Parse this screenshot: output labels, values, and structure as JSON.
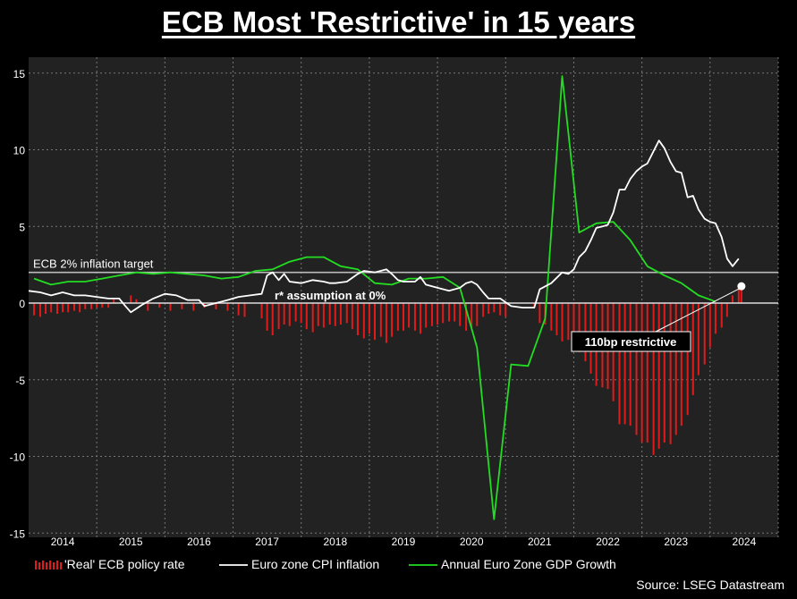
{
  "title": "ECB Most 'Restrictive' in 15 years",
  "source": "Source: LSEG Datastream",
  "colors": {
    "real_rate": "#e31a1a",
    "cpi": "#ffffff",
    "gdp": "#22dd22",
    "plot_bg": "#222222",
    "grid": "#777777"
  },
  "chart_data": {
    "type": "line",
    "xlim": [
      2013.5,
      2024.5
    ],
    "ylim": [
      -15,
      16
    ],
    "grid": true,
    "legend_position": "bottom",
    "x_ticks": [
      "2014",
      "2015",
      "2016",
      "2017",
      "2018",
      "2019",
      "2020",
      "2021",
      "2022",
      "2023",
      "2024"
    ],
    "y_ticks": [
      15,
      10,
      5,
      0,
      -5,
      -10,
      -15
    ],
    "reference_lines": [
      {
        "y": 2,
        "label": "ECB 2% inflation target"
      },
      {
        "y": 0,
        "label": "r* assumption at 0%"
      }
    ],
    "annotation": {
      "label": "110bp restrictive",
      "point": [
        2023.96,
        1.1
      ]
    },
    "series": [
      {
        "name": "'Real' ECB policy rate",
        "type": "bar",
        "points": [
          [
            2013.58,
            -0.8
          ],
          [
            2013.67,
            -0.9
          ],
          [
            2013.75,
            -0.7
          ],
          [
            2013.83,
            -0.6
          ],
          [
            2013.92,
            -0.7
          ],
          [
            2014.0,
            -0.6
          ],
          [
            2014.08,
            -0.6
          ],
          [
            2014.17,
            -0.5
          ],
          [
            2014.25,
            -0.6
          ],
          [
            2014.33,
            -0.4
          ],
          [
            2014.42,
            -0.4
          ],
          [
            2014.5,
            -0.3
          ],
          [
            2014.58,
            -0.3
          ],
          [
            2014.67,
            -0.3
          ],
          [
            2014.75,
            0.35
          ],
          [
            2015.0,
            0.5
          ],
          [
            2015.08,
            0.25
          ],
          [
            2015.25,
            -0.5
          ],
          [
            2015.42,
            -0.3
          ],
          [
            2015.58,
            -0.5
          ],
          [
            2015.75,
            -0.4
          ],
          [
            2015.92,
            -0.5
          ],
          [
            2016.08,
            -0.3
          ],
          [
            2016.25,
            -0.4
          ],
          [
            2016.42,
            -0.5
          ],
          [
            2016.58,
            -0.8
          ],
          [
            2016.67,
            -0.9
          ],
          [
            2016.92,
            -1.0
          ],
          [
            2017.0,
            -1.8
          ],
          [
            2017.08,
            -2.1
          ],
          [
            2017.17,
            -1.7
          ],
          [
            2017.25,
            -1.4
          ],
          [
            2017.33,
            -1.5
          ],
          [
            2017.42,
            -1.2
          ],
          [
            2017.5,
            -1.3
          ],
          [
            2017.58,
            -1.7
          ],
          [
            2017.67,
            -1.9
          ],
          [
            2017.75,
            -1.5
          ],
          [
            2017.83,
            -1.6
          ],
          [
            2017.92,
            -1.4
          ],
          [
            2018.0,
            -1.5
          ],
          [
            2018.08,
            -1.4
          ],
          [
            2018.17,
            -1.3
          ],
          [
            2018.25,
            -1.7
          ],
          [
            2018.33,
            -2.1
          ],
          [
            2018.42,
            -2.3
          ],
          [
            2018.5,
            -2.0
          ],
          [
            2018.58,
            -2.4
          ],
          [
            2018.67,
            -2.2
          ],
          [
            2018.75,
            -2.6
          ],
          [
            2018.83,
            -2.2
          ],
          [
            2018.92,
            -1.8
          ],
          [
            2019.0,
            -1.8
          ],
          [
            2019.08,
            -1.6
          ],
          [
            2019.17,
            -1.8
          ],
          [
            2019.25,
            -2.0
          ],
          [
            2019.33,
            -1.6
          ],
          [
            2019.42,
            -1.5
          ],
          [
            2019.5,
            -1.4
          ],
          [
            2019.58,
            -1.3
          ],
          [
            2019.67,
            -1.2
          ],
          [
            2019.75,
            -1.2
          ],
          [
            2019.83,
            -1.5
          ],
          [
            2019.92,
            -1.8
          ],
          [
            2020.0,
            -1.6
          ],
          [
            2020.08,
            -1.5
          ],
          [
            2020.17,
            -0.9
          ],
          [
            2020.25,
            -0.7
          ],
          [
            2020.33,
            -0.6
          ],
          [
            2020.42,
            -0.8
          ],
          [
            2020.5,
            -0.9
          ],
          [
            2020.92,
            -0.3
          ],
          [
            2021.0,
            -1.3
          ],
          [
            2021.08,
            -1.4
          ],
          [
            2021.17,
            -1.8
          ],
          [
            2021.25,
            -2.1
          ],
          [
            2021.33,
            -2.5
          ],
          [
            2021.42,
            -2.4
          ],
          [
            2021.5,
            -2.7
          ],
          [
            2021.58,
            -3.2
          ],
          [
            2021.67,
            -3.8
          ],
          [
            2021.75,
            -4.6
          ],
          [
            2021.83,
            -5.4
          ],
          [
            2021.92,
            -5.5
          ],
          [
            2022.0,
            -5.6
          ],
          [
            2022.08,
            -6.4
          ],
          [
            2022.17,
            -7.9
          ],
          [
            2022.25,
            -7.9
          ],
          [
            2022.33,
            -8.0
          ],
          [
            2022.42,
            -8.6
          ],
          [
            2022.5,
            -9.1
          ],
          [
            2022.58,
            -9.1
          ],
          [
            2022.67,
            -9.9
          ],
          [
            2022.75,
            -9.5
          ],
          [
            2022.83,
            -9.1
          ],
          [
            2022.92,
            -9.2
          ],
          [
            2023.0,
            -8.6
          ],
          [
            2023.08,
            -8.0
          ],
          [
            2023.17,
            -7.3
          ],
          [
            2023.25,
            -6.0
          ],
          [
            2023.33,
            -4.7
          ],
          [
            2023.42,
            -4.0
          ],
          [
            2023.5,
            -2.9
          ],
          [
            2023.58,
            -2.0
          ],
          [
            2023.67,
            -1.6
          ],
          [
            2023.75,
            -0.9
          ],
          [
            2023.83,
            0.5
          ],
          [
            2023.92,
            1.1
          ],
          [
            2023.96,
            0.9
          ]
        ]
      },
      {
        "name": "Euro zone CPI inflation",
        "type": "line",
        "points": [
          [
            2013.5,
            0.8
          ],
          [
            2013.67,
            0.7
          ],
          [
            2013.83,
            0.5
          ],
          [
            2014.0,
            0.7
          ],
          [
            2014.17,
            0.5
          ],
          [
            2014.33,
            0.5
          ],
          [
            2014.5,
            0.4
          ],
          [
            2014.67,
            0.3
          ],
          [
            2014.83,
            0.3
          ],
          [
            2014.92,
            -0.2
          ],
          [
            2015.0,
            -0.6
          ],
          [
            2015.17,
            -0.1
          ],
          [
            2015.33,
            0.3
          ],
          [
            2015.5,
            0.6
          ],
          [
            2015.67,
            0.5
          ],
          [
            2015.83,
            0.2
          ],
          [
            2016.0,
            0.2
          ],
          [
            2016.08,
            -0.2
          ],
          [
            2016.25,
            0.0
          ],
          [
            2016.42,
            0.2
          ],
          [
            2016.58,
            0.4
          ],
          [
            2016.75,
            0.5
          ],
          [
            2016.92,
            0.6
          ],
          [
            2017.0,
            1.8
          ],
          [
            2017.08,
            2.0
          ],
          [
            2017.17,
            1.5
          ],
          [
            2017.25,
            1.9
          ],
          [
            2017.33,
            1.4
          ],
          [
            2017.5,
            1.3
          ],
          [
            2017.67,
            1.5
          ],
          [
            2017.83,
            1.4
          ],
          [
            2017.92,
            1.3
          ],
          [
            2018.0,
            1.3
          ],
          [
            2018.17,
            1.4
          ],
          [
            2018.33,
            1.9
          ],
          [
            2018.42,
            2.1
          ],
          [
            2018.58,
            2.0
          ],
          [
            2018.75,
            2.2
          ],
          [
            2018.83,
            1.9
          ],
          [
            2018.92,
            1.5
          ],
          [
            2019.0,
            1.4
          ],
          [
            2019.17,
            1.4
          ],
          [
            2019.25,
            1.7
          ],
          [
            2019.33,
            1.2
          ],
          [
            2019.5,
            1.0
          ],
          [
            2019.67,
            0.8
          ],
          [
            2019.83,
            1.0
          ],
          [
            2019.92,
            1.3
          ],
          [
            2020.0,
            1.4
          ],
          [
            2020.08,
            1.2
          ],
          [
            2020.17,
            0.7
          ],
          [
            2020.25,
            0.3
          ],
          [
            2020.42,
            0.3
          ],
          [
            2020.58,
            -0.2
          ],
          [
            2020.75,
            -0.3
          ],
          [
            2020.92,
            -0.3
          ],
          [
            2021.0,
            0.9
          ],
          [
            2021.17,
            1.3
          ],
          [
            2021.33,
            2.0
          ],
          [
            2021.42,
            1.9
          ],
          [
            2021.5,
            2.2
          ],
          [
            2021.58,
            3.0
          ],
          [
            2021.67,
            3.4
          ],
          [
            2021.75,
            4.1
          ],
          [
            2021.83,
            4.9
          ],
          [
            2021.92,
            5.0
          ],
          [
            2022.0,
            5.1
          ],
          [
            2022.08,
            5.9
          ],
          [
            2022.17,
            7.4
          ],
          [
            2022.25,
            7.4
          ],
          [
            2022.33,
            8.1
          ],
          [
            2022.42,
            8.6
          ],
          [
            2022.5,
            8.9
          ],
          [
            2022.58,
            9.1
          ],
          [
            2022.67,
            9.9
          ],
          [
            2022.75,
            10.6
          ],
          [
            2022.83,
            10.1
          ],
          [
            2022.92,
            9.2
          ],
          [
            2023.0,
            8.6
          ],
          [
            2023.08,
            8.5
          ],
          [
            2023.17,
            6.9
          ],
          [
            2023.25,
            7.0
          ],
          [
            2023.33,
            6.1
          ],
          [
            2023.42,
            5.5
          ],
          [
            2023.5,
            5.3
          ],
          [
            2023.58,
            5.2
          ],
          [
            2023.67,
            4.3
          ],
          [
            2023.75,
            2.9
          ],
          [
            2023.83,
            2.4
          ],
          [
            2023.92,
            2.9
          ]
        ]
      },
      {
        "name": "Annual Euro Zone GDP Growth",
        "type": "line",
        "points": [
          [
            2013.58,
            1.6
          ],
          [
            2013.83,
            1.2
          ],
          [
            2014.08,
            1.4
          ],
          [
            2014.33,
            1.4
          ],
          [
            2014.58,
            1.6
          ],
          [
            2014.83,
            1.8
          ],
          [
            2015.08,
            2.0
          ],
          [
            2015.33,
            1.9
          ],
          [
            2015.58,
            2.0
          ],
          [
            2015.83,
            1.9
          ],
          [
            2016.08,
            1.8
          ],
          [
            2016.33,
            1.6
          ],
          [
            2016.58,
            1.7
          ],
          [
            2016.83,
            2.1
          ],
          [
            2017.08,
            2.2
          ],
          [
            2017.33,
            2.7
          ],
          [
            2017.58,
            3.0
          ],
          [
            2017.83,
            3.0
          ],
          [
            2018.08,
            2.4
          ],
          [
            2018.33,
            2.2
          ],
          [
            2018.58,
            1.3
          ],
          [
            2018.83,
            1.2
          ],
          [
            2019.08,
            1.6
          ],
          [
            2019.33,
            1.6
          ],
          [
            2019.58,
            1.7
          ],
          [
            2019.83,
            1.0
          ],
          [
            2020.08,
            -2.9
          ],
          [
            2020.33,
            -14.1
          ],
          [
            2020.58,
            -4.0
          ],
          [
            2020.83,
            -4.1
          ],
          [
            2021.08,
            -1.0
          ],
          [
            2021.33,
            14.8
          ],
          [
            2021.58,
            4.6
          ],
          [
            2021.83,
            5.2
          ],
          [
            2022.08,
            5.3
          ],
          [
            2022.33,
            4.1
          ],
          [
            2022.58,
            2.4
          ],
          [
            2022.83,
            1.8
          ],
          [
            2023.08,
            1.3
          ],
          [
            2023.33,
            0.5
          ],
          [
            2023.58,
            0.1
          ]
        ]
      }
    ]
  }
}
